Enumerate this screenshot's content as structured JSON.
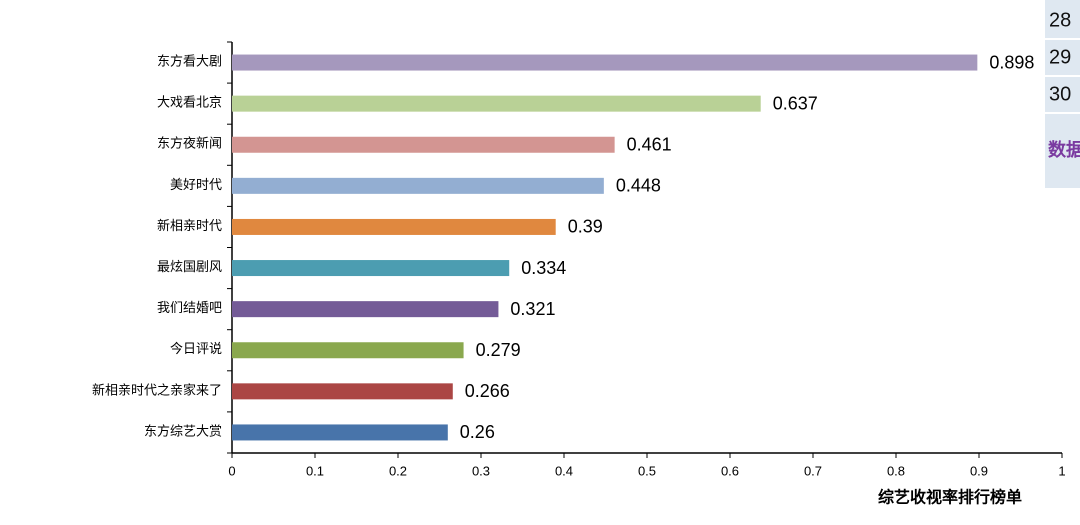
{
  "chart_data": {
    "type": "barh",
    "categories": [
      "东方看大剧",
      "大戏看北京",
      "东方夜新闻",
      "美好时代",
      "新相亲时代",
      "最炫国剧风",
      "我们结婚吧",
      "今日评说",
      "新相亲时代之亲家来了",
      "东方综艺大赏"
    ],
    "values": [
      0.898,
      0.637,
      0.461,
      0.448,
      0.39,
      0.334,
      0.321,
      0.279,
      0.266,
      0.26
    ],
    "colors": [
      "#a598bd",
      "#b9d196",
      "#d39592",
      "#93aed2",
      "#e0883f",
      "#4c9db1",
      "#745b97",
      "#8aa84e",
      "#ab4644",
      "#4874aa"
    ],
    "xlim": [
      0,
      1
    ],
    "xticks": [
      0,
      0.1,
      0.2,
      0.3,
      0.4,
      0.5,
      0.6,
      0.7,
      0.8,
      0.9,
      1
    ],
    "x_label": "综艺收视率排行榜单"
  },
  "side_panel": {
    "rows": [
      "28",
      "29",
      "30"
    ],
    "footer": "数据"
  }
}
